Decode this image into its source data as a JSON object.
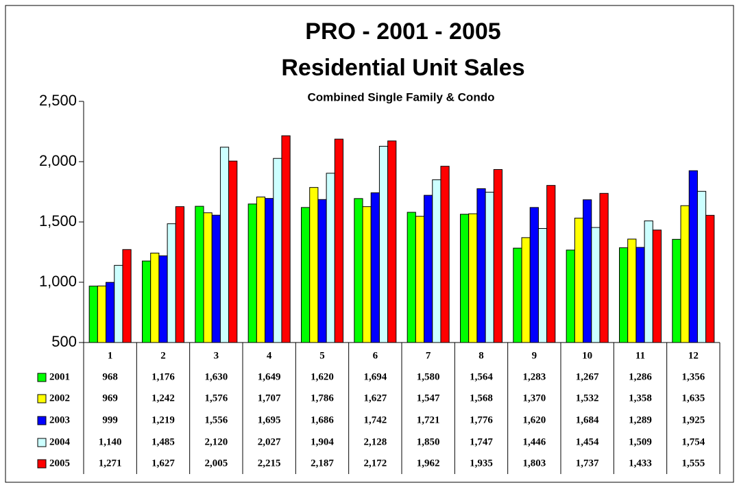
{
  "chart_data": {
    "type": "bar",
    "title": "PRO - 2001 - 2005",
    "subtitle": "Residential Unit Sales",
    "annotation": "Combined Single Family & Condo",
    "categories": [
      "1",
      "2",
      "3",
      "4",
      "5",
      "6",
      "7",
      "8",
      "9",
      "10",
      "11",
      "12"
    ],
    "ylim": [
      500,
      2500
    ],
    "yticks": [
      500,
      {
        "value": 1000,
        "label": "1,000"
      },
      {
        "value": 1500,
        "label": "1,500"
      },
      {
        "value": 2000,
        "label": "2,000"
      },
      {
        "value": 2500,
        "label": "2,500"
      }
    ],
    "series": [
      {
        "name": "2001",
        "color": "#00ff00",
        "values": [
          968,
          1176,
          1630,
          1649,
          1620,
          1694,
          1580,
          1564,
          1283,
          1267,
          1286,
          1356
        ],
        "value_labels": [
          "968",
          "1,176",
          "1,630",
          "1,649",
          "1,620",
          "1,694",
          "1,580",
          "1,564",
          "1,283",
          "1,267",
          "1,286",
          "1,356"
        ]
      },
      {
        "name": "2002",
        "color": "#ffff00",
        "values": [
          969,
          1242,
          1576,
          1707,
          1786,
          1627,
          1547,
          1568,
          1370,
          1532,
          1358,
          1635
        ],
        "value_labels": [
          "969",
          "1,242",
          "1,576",
          "1,707",
          "1,786",
          "1,627",
          "1,547",
          "1,568",
          "1,370",
          "1,532",
          "1,358",
          "1,635"
        ]
      },
      {
        "name": "2003",
        "color": "#0000ff",
        "values": [
          999,
          1219,
          1556,
          1695,
          1686,
          1742,
          1721,
          1776,
          1620,
          1684,
          1289,
          1925
        ],
        "value_labels": [
          "999",
          "1,219",
          "1,556",
          "1,695",
          "1,686",
          "1,742",
          "1,721",
          "1,776",
          "1,620",
          "1,684",
          "1,289",
          "1,925"
        ]
      },
      {
        "name": "2004",
        "color": "#ccffff",
        "values": [
          1140,
          1485,
          2120,
          2027,
          1904,
          2128,
          1850,
          1747,
          1446,
          1454,
          1509,
          1754
        ],
        "value_labels": [
          "1,140",
          "1,485",
          "2,120",
          "2,027",
          "1,904",
          "2,128",
          "1,850",
          "1,747",
          "1,446",
          "1,454",
          "1,509",
          "1,754"
        ]
      },
      {
        "name": "2005",
        "color": "#ff0000",
        "values": [
          1271,
          1627,
          2005,
          2215,
          2187,
          2172,
          1962,
          1935,
          1803,
          1737,
          1433,
          1555
        ],
        "value_labels": [
          "1,271",
          "1,627",
          "2,005",
          "2,215",
          "2,187",
          "2,172",
          "1,962",
          "1,935",
          "1,803",
          "1,737",
          "1,433",
          "1,555"
        ]
      }
    ]
  }
}
